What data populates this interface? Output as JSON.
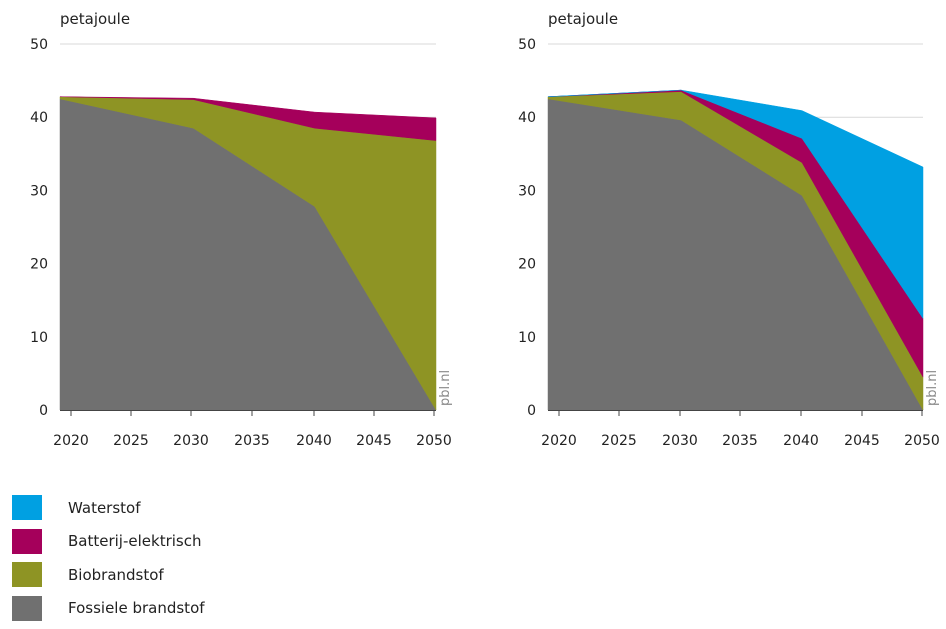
{
  "chart_data": [
    {
      "type": "area",
      "stacked": true,
      "ylabel": "petajoule",
      "x": [
        2019,
        2030,
        2040,
        2050
      ],
      "xticks": [
        2020,
        2025,
        2030,
        2035,
        2040,
        2045,
        2050
      ],
      "yticks": [
        0,
        10,
        20,
        30,
        40,
        50
      ],
      "xlim": [
        2019,
        2050
      ],
      "ylim": [
        0,
        50
      ],
      "watermark": "pbl.nl",
      "series": [
        {
          "name": "Fossiele brandstof",
          "values": [
            42.5,
            38.5,
            27.8,
            0
          ]
        },
        {
          "name": "Biobrandstof",
          "values": [
            0.3,
            3.9,
            10.7,
            36.8
          ]
        },
        {
          "name": "Batterij-elektrisch",
          "values": [
            0,
            0.2,
            2.2,
            3.1
          ]
        },
        {
          "name": "Waterstof",
          "values": [
            0,
            0,
            0,
            0
          ]
        }
      ]
    },
    {
      "type": "area",
      "stacked": true,
      "ylabel": "petajoule",
      "x": [
        2019,
        2030,
        2040,
        2050
      ],
      "xticks": [
        2020,
        2025,
        2030,
        2035,
        2040,
        2045,
        2050
      ],
      "yticks": [
        0,
        10,
        20,
        30,
        40,
        50
      ],
      "xlim": [
        2019,
        2050
      ],
      "ylim": [
        0,
        50
      ],
      "watermark": "pbl.nl",
      "series": [
        {
          "name": "Fossiele brandstof",
          "values": [
            42.5,
            39.6,
            29.3,
            0
          ]
        },
        {
          "name": "Biobrandstof",
          "values": [
            0.3,
            3.9,
            4.5,
            4.5
          ]
        },
        {
          "name": "Batterij-elektrisch",
          "values": [
            0,
            0.2,
            3.3,
            8
          ]
        },
        {
          "name": "Waterstof",
          "values": [
            0,
            0,
            3.8,
            20.7
          ]
        }
      ]
    }
  ],
  "legend": [
    {
      "label": "Waterstof",
      "color": "#00a0e2"
    },
    {
      "label": "Batterij-elektrisch",
      "color": "#a5005b"
    },
    {
      "label": "Biobrandstof",
      "color": "#8e9424"
    },
    {
      "label": "Fossiele brandstof",
      "color": "#707070"
    }
  ],
  "colors": {
    "Fossiele brandstof": "#707070",
    "Biobrandstof": "#8e9424",
    "Batterij-elektrisch": "#a5005b",
    "Waterstof": "#00a0e2",
    "grid": "#d9d9d9",
    "axis": "#444444",
    "watermark": "#8a8a8a"
  }
}
